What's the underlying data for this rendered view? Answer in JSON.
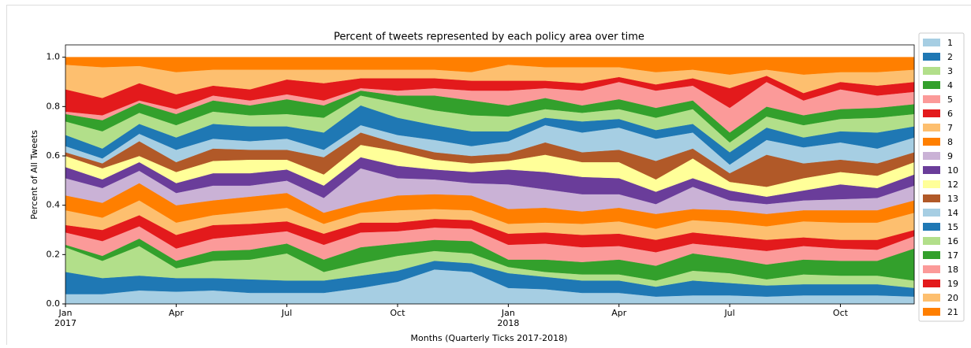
{
  "chart_data": {
    "type": "stacked-area",
    "title": "Percent of tweets represented by each policy area over time",
    "xlabel": "Months (Quarterly Ticks 2017-2018)",
    "ylabel": "Percent of All Tweets",
    "x": [
      "2017-01",
      "2017-02",
      "2017-03",
      "2017-04",
      "2017-05",
      "2017-06",
      "2017-07",
      "2017-08",
      "2017-09",
      "2017-10",
      "2017-11",
      "2017-12",
      "2018-01",
      "2018-02",
      "2018-03",
      "2018-04",
      "2018-05",
      "2018-06",
      "2018-07",
      "2018-08",
      "2018-09",
      "2018-10",
      "2018-11",
      "2018-12"
    ],
    "xticks": [
      {
        "value": "2017-01",
        "label": "Jan",
        "year": "2017"
      },
      {
        "value": "2017-04",
        "label": "Apr"
      },
      {
        "value": "2017-07",
        "label": "Jul"
      },
      {
        "value": "2017-10",
        "label": "Oct"
      },
      {
        "value": "2018-01",
        "label": "Jan",
        "year": "2018"
      },
      {
        "value": "2018-04",
        "label": "Apr"
      },
      {
        "value": "2018-07",
        "label": "Jul"
      },
      {
        "value": "2018-10",
        "label": "Oct"
      }
    ],
    "ylim": [
      0,
      1.05
    ],
    "yticks": [
      {
        "value": 0,
        "label": "0.0"
      },
      0.2,
      0.4,
      0.6,
      0.8,
      {
        "value": 1,
        "label": "1.0"
      }
    ],
    "legend": "right",
    "series": [
      {
        "name": "1",
        "color": "#a6cee3",
        "values": [
          0.04,
          0.04,
          0.055,
          0.05,
          0.055,
          0.045,
          0.045,
          0.045,
          0.065,
          0.09,
          0.14,
          0.13,
          0.065,
          0.06,
          0.045,
          0.045,
          0.03,
          0.035,
          0.035,
          0.03,
          0.035,
          0.035,
          0.035,
          0.03
        ]
      },
      {
        "name": "2",
        "color": "#1f78b4",
        "values": [
          0.09,
          0.065,
          0.06,
          0.055,
          0.05,
          0.055,
          0.05,
          0.05,
          0.05,
          0.045,
          0.035,
          0.035,
          0.06,
          0.05,
          0.05,
          0.05,
          0.04,
          0.06,
          0.05,
          0.045,
          0.045,
          0.045,
          0.045,
          0.035
        ]
      },
      {
        "name": "3",
        "color": "#b2df8a",
        "values": [
          0.1,
          0.07,
          0.12,
          0.04,
          0.07,
          0.08,
          0.11,
          0.035,
          0.05,
          0.06,
          0.04,
          0.04,
          0.025,
          0.02,
          0.025,
          0.025,
          0.025,
          0.04,
          0.04,
          0.025,
          0.04,
          0.035,
          0.035,
          0.03
        ]
      },
      {
        "name": "4",
        "color": "#33a02c",
        "values": [
          0.01,
          0.02,
          0.03,
          0.03,
          0.04,
          0.04,
          0.04,
          0.05,
          0.065,
          0.05,
          0.045,
          0.05,
          0.03,
          0.05,
          0.05,
          0.06,
          0.06,
          0.07,
          0.06,
          0.06,
          0.06,
          0.06,
          0.06,
          0.13
        ]
      },
      {
        "name": "5",
        "color": "#fb9a99",
        "values": [
          0.05,
          0.06,
          0.05,
          0.05,
          0.05,
          0.06,
          0.05,
          0.06,
          0.06,
          0.05,
          0.05,
          0.05,
          0.06,
          0.065,
          0.06,
          0.055,
          0.055,
          0.04,
          0.045,
          0.055,
          0.055,
          0.05,
          0.045,
          0.05
        ]
      },
      {
        "name": "6",
        "color": "#e31a1c",
        "values": [
          0.03,
          0.045,
          0.045,
          0.055,
          0.055,
          0.045,
          0.04,
          0.045,
          0.04,
          0.035,
          0.035,
          0.035,
          0.045,
          0.045,
          0.05,
          0.05,
          0.05,
          0.045,
          0.045,
          0.045,
          0.035,
          0.035,
          0.04,
          0.025
        ]
      },
      {
        "name": "7",
        "color": "#fdbf6f",
        "values": [
          0.06,
          0.05,
          0.06,
          0.05,
          0.04,
          0.05,
          0.055,
          0.04,
          0.04,
          0.05,
          0.04,
          0.04,
          0.04,
          0.04,
          0.045,
          0.05,
          0.045,
          0.05,
          0.055,
          0.055,
          0.065,
          0.07,
          0.07,
          0.07
        ]
      },
      {
        "name": "8",
        "color": "#ff7f00",
        "values": [
          0.06,
          0.06,
          0.07,
          0.07,
          0.06,
          0.06,
          0.06,
          0.045,
          0.04,
          0.06,
          0.06,
          0.06,
          0.06,
          0.06,
          0.05,
          0.055,
          0.06,
          0.045,
          0.05,
          0.05,
          0.045,
          0.05,
          0.05,
          0.05
        ]
      },
      {
        "name": "9",
        "color": "#cab2d6",
        "values": [
          0.07,
          0.06,
          0.05,
          0.05,
          0.06,
          0.045,
          0.05,
          0.06,
          0.14,
          0.07,
          0.06,
          0.05,
          0.1,
          0.075,
          0.07,
          0.055,
          0.04,
          0.09,
          0.04,
          0.04,
          0.04,
          0.045,
          0.05,
          0.06
        ]
      },
      {
        "name": "10",
        "color": "#6a3d9a",
        "values": [
          0.045,
          0.035,
          0.035,
          0.04,
          0.05,
          0.05,
          0.045,
          0.05,
          0.045,
          0.05,
          0.04,
          0.045,
          0.06,
          0.07,
          0.07,
          0.065,
          0.05,
          0.035,
          0.04,
          0.03,
          0.04,
          0.06,
          0.04,
          0.045
        ]
      },
      {
        "name": "12",
        "color": "#ffff99",
        "values": [
          0.045,
          0.045,
          0.025,
          0.045,
          0.05,
          0.055,
          0.04,
          0.045,
          0.05,
          0.06,
          0.04,
          0.035,
          0.035,
          0.07,
          0.06,
          0.065,
          0.05,
          0.08,
          0.035,
          0.04,
          0.05,
          0.05,
          0.05,
          0.05
        ]
      },
      {
        "name": "13",
        "color": "#b15928",
        "values": [
          0.015,
          0.02,
          0.06,
          0.04,
          0.05,
          0.04,
          0.04,
          0.07,
          0.05,
          0.03,
          0.03,
          0.03,
          0.03,
          0.05,
          0.04,
          0.05,
          0.075,
          0.04,
          0.035,
          0.13,
          0.06,
          0.05,
          0.05,
          0.04
        ]
      },
      {
        "name": "14",
        "color": "#a6cee3",
        "values": [
          0.025,
          0.02,
          0.03,
          0.05,
          0.04,
          0.035,
          0.045,
          0.03,
          0.03,
          0.035,
          0.05,
          0.04,
          0.05,
          0.07,
          0.08,
          0.09,
          0.09,
          0.065,
          0.035,
          0.06,
          0.065,
          0.07,
          0.06,
          0.06
        ]
      },
      {
        "name": "15",
        "color": "#1f78b4",
        "values": [
          0.045,
          0.04,
          0.04,
          0.05,
          0.06,
          0.06,
          0.05,
          0.07,
          0.08,
          0.07,
          0.06,
          0.06,
          0.04,
          0.03,
          0.045,
          0.035,
          0.035,
          0.035,
          0.05,
          0.05,
          0.04,
          0.045,
          0.065,
          0.045
        ]
      },
      {
        "name": "16",
        "color": "#b2df8a",
        "values": [
          0.055,
          0.07,
          0.045,
          0.05,
          0.05,
          0.045,
          0.05,
          0.06,
          0.04,
          0.06,
          0.06,
          0.065,
          0.06,
          0.035,
          0.035,
          0.04,
          0.05,
          0.06,
          0.04,
          0.045,
          0.05,
          0.05,
          0.06,
          0.05
        ]
      },
      {
        "name": "17",
        "color": "#33a02c",
        "values": [
          0.03,
          0.045,
          0.04,
          0.045,
          0.045,
          0.04,
          0.06,
          0.05,
          0.02,
          0.03,
          0.06,
          0.06,
          0.045,
          0.045,
          0.03,
          0.04,
          0.04,
          0.035,
          0.04,
          0.04,
          0.04,
          0.04,
          0.04,
          0.04
        ]
      },
      {
        "name": "18",
        "color": "#fb9a99",
        "values": [
          0.01,
          0.02,
          0.01,
          0.02,
          0.02,
          0.02,
          0.02,
          0.02,
          0.01,
          0.02,
          0.03,
          0.04,
          0.06,
          0.04,
          0.06,
          0.07,
          0.07,
          0.06,
          0.1,
          0.1,
          0.06,
          0.08,
          0.05,
          0.05
        ]
      },
      {
        "name": "19",
        "color": "#e31a1c",
        "values": [
          0.09,
          0.07,
          0.07,
          0.06,
          0.04,
          0.045,
          0.06,
          0.07,
          0.04,
          0.05,
          0.04,
          0.04,
          0.04,
          0.03,
          0.03,
          0.02,
          0.025,
          0.03,
          0.08,
          0.025,
          0.03,
          0.03,
          0.04,
          0.04
        ]
      },
      {
        "name": "20",
        "color": "#fdbf6f",
        "values": [
          0.1,
          0.125,
          0.07,
          0.09,
          0.065,
          0.08,
          0.04,
          0.055,
          0.035,
          0.035,
          0.035,
          0.035,
          0.065,
          0.055,
          0.065,
          0.04,
          0.05,
          0.035,
          0.055,
          0.025,
          0.075,
          0.04,
          0.055,
          0.05
        ]
      },
      {
        "name": "21",
        "color": "#ff7f00",
        "values": [
          0.03,
          0.04,
          0.035,
          0.06,
          0.05,
          0.05,
          0.05,
          0.05,
          0.05,
          0.05,
          0.05,
          0.06,
          0.03,
          0.04,
          0.04,
          0.04,
          0.06,
          0.05,
          0.07,
          0.05,
          0.07,
          0.06,
          0.06,
          0.05
        ]
      }
    ]
  }
}
